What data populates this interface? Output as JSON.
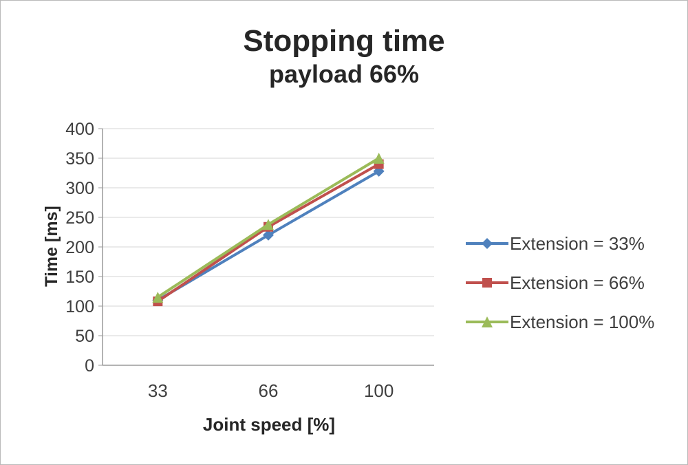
{
  "chart_data": {
    "type": "line",
    "title": "Stopping time",
    "subtitle": "payload 66%",
    "xlabel": "Joint speed [%]",
    "ylabel": "Time [ms]",
    "categories": [
      "33",
      "66",
      "100"
    ],
    "series": [
      {
        "name": "Extension = 33%",
        "color": "#4F81BD",
        "marker": "diamond",
        "values": [
          110,
          220,
          328
        ]
      },
      {
        "name": "Extension = 66%",
        "color": "#C0504D",
        "marker": "square",
        "values": [
          108,
          234,
          340
        ]
      },
      {
        "name": "Extension = 100%",
        "color": "#9BBB59",
        "marker": "triangle",
        "values": [
          115,
          238,
          350
        ]
      }
    ],
    "ylim": [
      0,
      400
    ],
    "ytick_step": 50,
    "grid": true,
    "legend_position": "right"
  },
  "colors": {
    "axis": "#9a9a9a",
    "gridline": "#d6d6d6",
    "tick_text": "#3f3f3f",
    "title_text": "#262626",
    "page_border": "#b9b9b9"
  }
}
